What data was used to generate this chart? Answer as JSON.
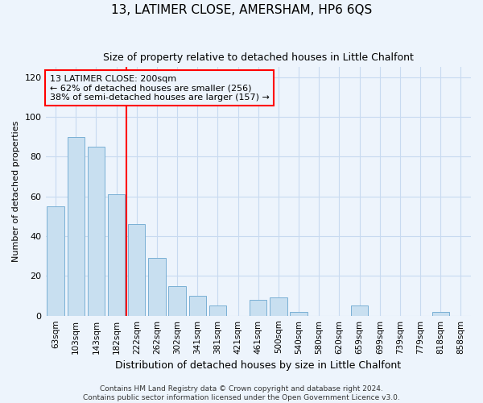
{
  "title": "13, LATIMER CLOSE, AMERSHAM, HP6 6QS",
  "subtitle": "Size of property relative to detached houses in Little Chalfont",
  "xlabel": "Distribution of detached houses by size in Little Chalfont",
  "ylabel": "Number of detached properties",
  "footer_lines": [
    "Contains HM Land Registry data © Crown copyright and database right 2024.",
    "Contains public sector information licensed under the Open Government Licence v3.0."
  ],
  "bar_labels": [
    "63sqm",
    "103sqm",
    "143sqm",
    "182sqm",
    "222sqm",
    "262sqm",
    "302sqm",
    "341sqm",
    "381sqm",
    "421sqm",
    "461sqm",
    "500sqm",
    "540sqm",
    "580sqm",
    "620sqm",
    "659sqm",
    "699sqm",
    "739sqm",
    "779sqm",
    "818sqm",
    "858sqm"
  ],
  "bar_values": [
    55,
    90,
    85,
    61,
    46,
    29,
    15,
    10,
    5,
    0,
    8,
    9,
    2,
    0,
    0,
    5,
    0,
    0,
    0,
    2,
    0
  ],
  "bar_color": "#c8dff0",
  "bar_edge_color": "#7ab0d4",
  "vline_x": 3.5,
  "vline_color": "red",
  "annotation_text": "13 LATIMER CLOSE: 200sqm\n← 62% of detached houses are smaller (256)\n38% of semi-detached houses are larger (157) →",
  "annotation_box_edge": "red",
  "ylim": [
    0,
    125
  ],
  "yticks": [
    0,
    20,
    40,
    60,
    80,
    100,
    120
  ],
  "grid_color": "#c8daf0",
  "bg_color": "#edf4fc",
  "plot_bg_color": "#edf4fc"
}
